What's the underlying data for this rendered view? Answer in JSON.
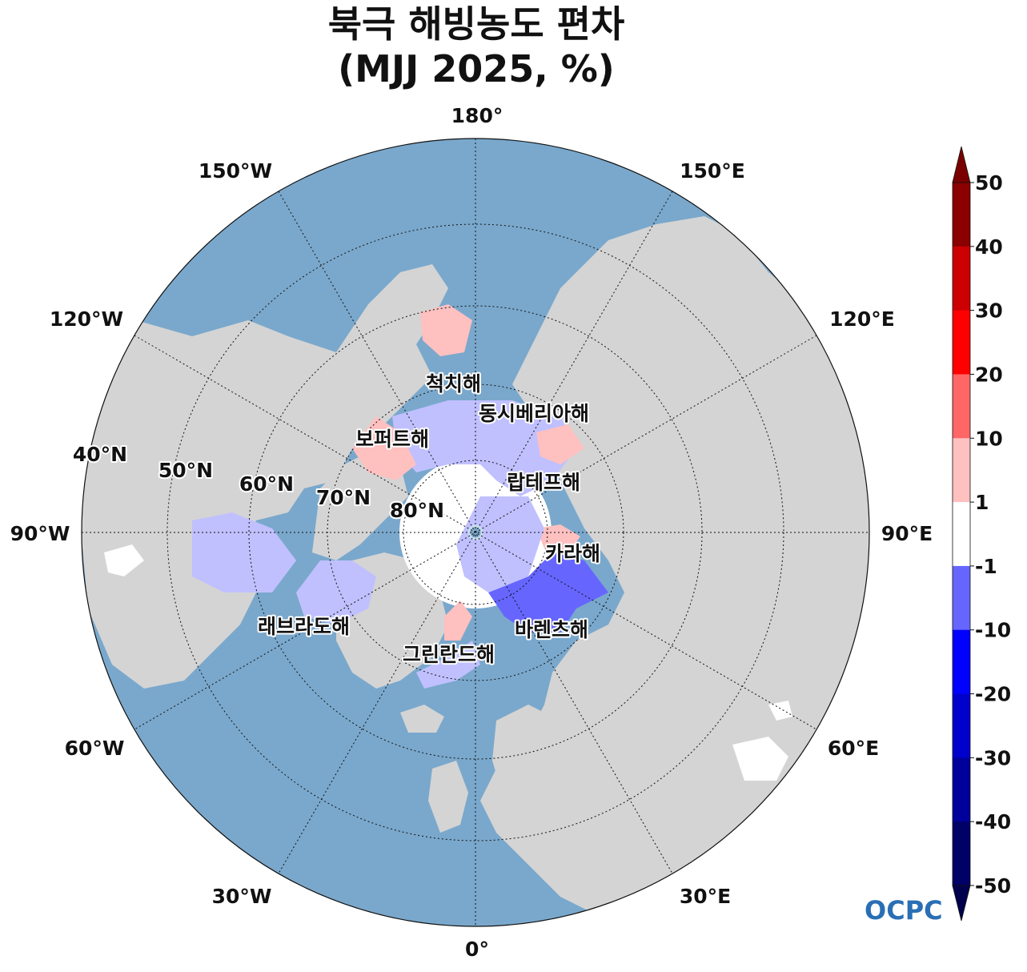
{
  "title": {
    "line1": "북극 해빙농도 편차",
    "line2": "(MJJ 2025, %)"
  },
  "map": {
    "projection": "north-polar-stereographic",
    "colors": {
      "ocean": "#7aa8cc",
      "ocean_light": "#c8ddec",
      "land": "#d4d4d4",
      "ice": "#ffffff"
    },
    "longitude_labels": [
      "180°",
      "150°E",
      "120°E",
      "90°E",
      "60°E",
      "30°E",
      "0°",
      "30°W",
      "60°W",
      "90°W",
      "120°W",
      "150°W"
    ],
    "latitude_labels": [
      "40°N",
      "50°N",
      "60°N",
      "70°N",
      "80°N"
    ],
    "seas": [
      "척치해",
      "동시베리아해",
      "보퍼트해",
      "랍테프해",
      "카라해",
      "바렌츠해",
      "그린란드해",
      "래브라도해"
    ]
  },
  "colorbar": {
    "ticks": [
      "50",
      "40",
      "30",
      "20",
      "10",
      "1",
      "-1",
      "-10",
      "-20",
      "-30",
      "-40",
      "-50"
    ],
    "colors": [
      "#8b0000",
      "#cc0000",
      "#ff0000",
      "#ff6666",
      "#ffc0c0",
      "#ffffff",
      "#c0c0ff",
      "#6666ff",
      "#0000ff",
      "#0000cc",
      "#00009a",
      "#000066"
    ],
    "extend_top_color": "#7a0000",
    "extend_bottom_color": "#00004d"
  },
  "logo": {
    "text": "OCPC"
  }
}
